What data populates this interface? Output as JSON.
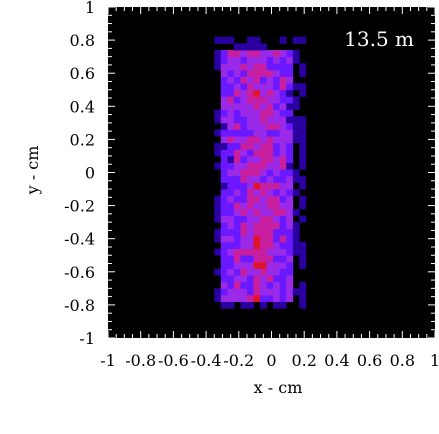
{
  "chart_data": {
    "type": "heatmap",
    "title": "",
    "xlabel": "x - cm",
    "ylabel": "y - cm",
    "xlim": [
      -1,
      1
    ],
    "ylim": [
      -1,
      1
    ],
    "x_ticks": [
      -1,
      -0.8,
      -0.6,
      -0.4,
      -0.2,
      0,
      0.2,
      0.4,
      0.6,
      0.8,
      1
    ],
    "x_tick_labels": [
      "-1",
      "-0.8",
      "-0.6",
      "-0.4",
      "-0.2",
      "0",
      "0.2",
      "0.4",
      "0.6",
      "0.8",
      "1"
    ],
    "y_ticks": [
      1,
      0.8,
      0.6,
      0.4,
      0.2,
      0,
      -0.2,
      -0.4,
      -0.6,
      -0.8,
      -1
    ],
    "y_tick_labels": [
      "1",
      "0.8",
      "0.6",
      "0.4",
      "0.2",
      "0",
      "-0.2",
      "-0.4",
      "-0.6",
      "-0.8",
      "-1"
    ],
    "background_color": "#000000",
    "colormap": [
      "#000000",
      "#2a00a0",
      "#6a18ff",
      "#9a2ae8",
      "#c81fa0",
      "#e0142a"
    ],
    "beam_spot": {
      "x_range": [
        -0.31,
        0.15
      ],
      "y_range": [
        -0.78,
        0.75
      ]
    },
    "annotation": "13.5 m",
    "grid": false
  }
}
